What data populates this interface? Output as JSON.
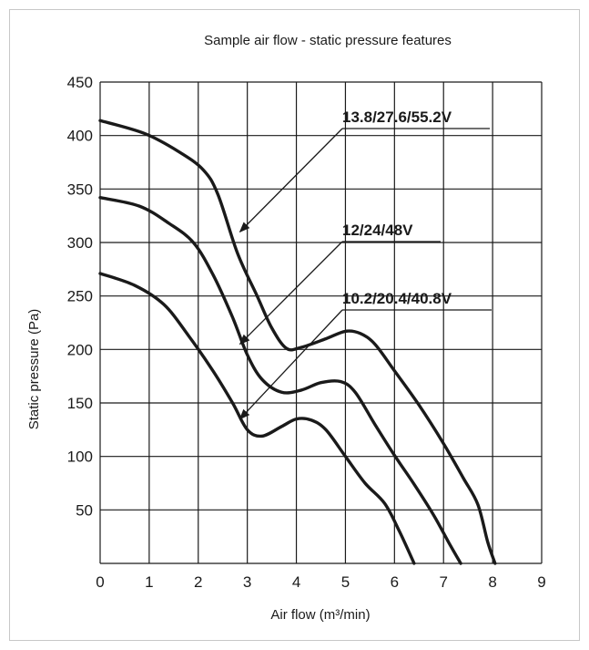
{
  "chart_data": {
    "type": "line",
    "title": "Sample air flow - static pressure features",
    "xlabel": "Air flow (m³/min)",
    "ylabel": "Static pressure (Pa)",
    "xlim": [
      0,
      9
    ],
    "ylim": [
      0,
      450
    ],
    "x_ticks": [
      "0",
      "1",
      "2",
      "3",
      "4",
      "5",
      "6",
      "7",
      "8",
      "9"
    ],
    "y_ticks": [
      "50",
      "100",
      "150",
      "200",
      "250",
      "300",
      "350",
      "400",
      "450"
    ],
    "grid": true,
    "series": [
      {
        "name": "13.8/27.6/55.2V",
        "points": [
          [
            0,
            414
          ],
          [
            0.9,
            402
          ],
          [
            1.6,
            385
          ],
          [
            2.1,
            368
          ],
          [
            2.4,
            345
          ],
          [
            2.8,
            290
          ],
          [
            3.2,
            250
          ],
          [
            3.5,
            220
          ],
          [
            3.8,
            201
          ],
          [
            4.1,
            202
          ],
          [
            4.6,
            210
          ],
          [
            5.0,
            217
          ],
          [
            5.3,
            215
          ],
          [
            5.6,
            205
          ],
          [
            6.0,
            180
          ],
          [
            6.5,
            148
          ],
          [
            7.0,
            112
          ],
          [
            7.4,
            80
          ],
          [
            7.7,
            55
          ],
          [
            7.9,
            20
          ],
          [
            8.05,
            0
          ]
        ]
      },
      {
        "name": "12/24/48V",
        "points": [
          [
            0,
            342
          ],
          [
            0.8,
            334
          ],
          [
            1.4,
            318
          ],
          [
            1.9,
            300
          ],
          [
            2.3,
            270
          ],
          [
            2.7,
            230
          ],
          [
            3.0,
            195
          ],
          [
            3.3,
            172
          ],
          [
            3.7,
            160
          ],
          [
            4.1,
            162
          ],
          [
            4.5,
            169
          ],
          [
            4.9,
            170
          ],
          [
            5.2,
            160
          ],
          [
            5.6,
            130
          ],
          [
            6.0,
            101
          ],
          [
            6.4,
            74
          ],
          [
            6.8,
            45
          ],
          [
            7.1,
            20
          ],
          [
            7.35,
            0
          ]
        ]
      },
      {
        "name": "10.2/20.4/40.8V",
        "points": [
          [
            0,
            271
          ],
          [
            0.7,
            260
          ],
          [
            1.3,
            242
          ],
          [
            1.8,
            213
          ],
          [
            2.3,
            180
          ],
          [
            2.7,
            150
          ],
          [
            3.0,
            125
          ],
          [
            3.3,
            119
          ],
          [
            3.7,
            128
          ],
          [
            4.0,
            135
          ],
          [
            4.3,
            134
          ],
          [
            4.6,
            125
          ],
          [
            5.0,
            100
          ],
          [
            5.4,
            75
          ],
          [
            5.8,
            56
          ],
          [
            6.1,
            30
          ],
          [
            6.4,
            0
          ]
        ]
      }
    ],
    "annotations": [
      {
        "text": "13.8/27.6/55.2V",
        "points_to": [
          2.85,
          310
        ]
      },
      {
        "text": "12/24/48V",
        "points_to": [
          2.85,
          205
        ]
      },
      {
        "text": "10.2/20.4/40.8V",
        "points_to": [
          2.85,
          135
        ]
      }
    ]
  }
}
